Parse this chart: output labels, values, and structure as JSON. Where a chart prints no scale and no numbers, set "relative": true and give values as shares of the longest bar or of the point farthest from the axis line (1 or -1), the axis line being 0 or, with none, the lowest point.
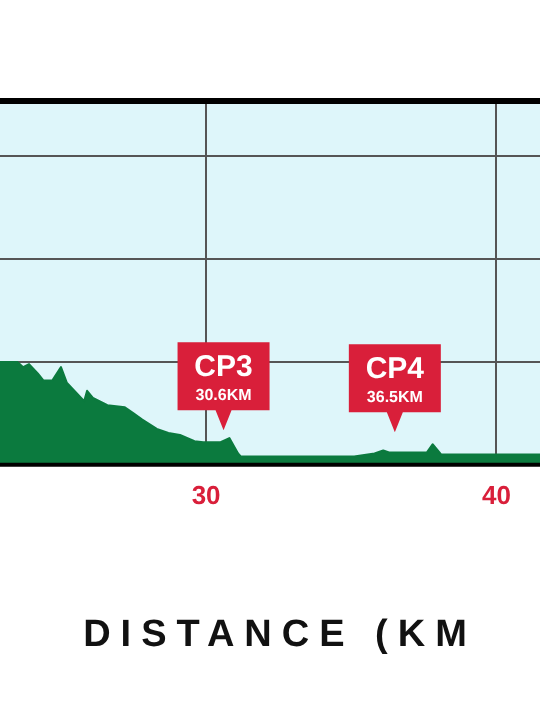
{
  "chart_data": {
    "type": "area",
    "relative": true,
    "color": "#0b7a3e",
    "x": [
      22.9,
      23.5,
      23.7,
      23.9,
      24.2,
      24.4,
      24.7,
      25.0,
      25.2,
      25.5,
      25.8,
      25.9,
      26.1,
      26.6,
      27.2,
      27.5,
      27.8,
      28.3,
      28.7,
      29.1,
      29.6,
      29.9,
      30.5,
      30.8,
      31.1,
      31.2,
      35.1,
      35.8,
      36.1,
      36.3,
      37.6,
      37.8,
      38.1,
      41.5
    ],
    "values": [
      1,
      1,
      0.95,
      0.98,
      0.89,
      0.82,
      0.82,
      0.95,
      0.8,
      0.71,
      0.62,
      0.72,
      0.65,
      0.58,
      0.56,
      0.5,
      0.44,
      0.35,
      0.31,
      0.29,
      0.23,
      0.22,
      0.22,
      0.26,
      0.11,
      0.08,
      0.08,
      0.11,
      0.14,
      0.12,
      0.12,
      0.2,
      0.1,
      0.1
    ],
    "xlim": [
      22.9,
      41.5
    ],
    "xticks": [
      30,
      40
    ],
    "xlabel": "DISTANCE (KM",
    "grid": true,
    "marker": "none",
    "annotations": [
      {
        "text": "CP3 30.6KM",
        "x": 30.6,
        "y": 0.22
      },
      {
        "text": "CP4 36.5KM",
        "x": 36.5,
        "y": 0.2
      }
    ]
  }
}
